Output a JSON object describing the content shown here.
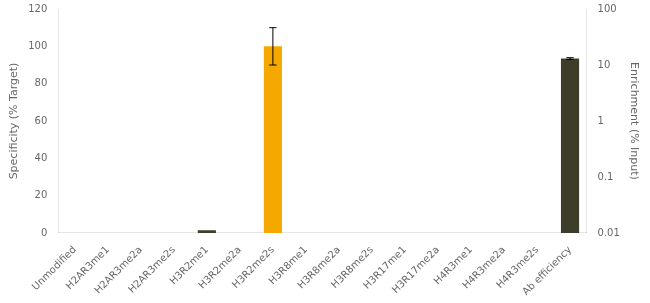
{
  "chart_data": {
    "type": "bar",
    "categories": [
      "Unmodified",
      "H2AR3me1",
      "H2AR3me2a",
      "H2AR3me2s",
      "H3R2me1",
      "H3R2me2a",
      "H3R2me2s",
      "H3R8me1",
      "H3R8me2a",
      "H3R8me2s",
      "H3R17me1",
      "H3R17me2a",
      "H4R3me1",
      "H4R3me2a",
      "H4R3me2s",
      "Ab efficiency"
    ],
    "ylabel": "Specificity (% Target)",
    "y2label": "Enrichment (% Input)",
    "series": [
      {
        "values": [
          0,
          0,
          0,
          0,
          1.5,
          0,
          100,
          0,
          0,
          0,
          0,
          0,
          0,
          0,
          0,
          null
        ],
        "errors": [
          0,
          0,
          0,
          0,
          0,
          0,
          10,
          0,
          0,
          0,
          0,
          0,
          0,
          0,
          0,
          null
        ],
        "colors": [
          "#3d3d2a",
          "#3d3d2a",
          "#3d3d2a",
          "#3d3d2a",
          "#3d3d2a",
          "#3d3d2a",
          "#f5a800",
          "#3d3d2a",
          "#3d3d2a",
          "#3d3d2a",
          "#3d3d2a",
          "#3d3d2a",
          "#3d3d2a",
          "#3d3d2a",
          "#3d3d2a",
          "#3d3d2a"
        ]
      },
      {
        "values": [
          null,
          null,
          null,
          null,
          null,
          null,
          null,
          null,
          null,
          null,
          null,
          null,
          null,
          null,
          null,
          13.0
        ],
        "errors": [
          null,
          null,
          null,
          null,
          null,
          null,
          null,
          null,
          null,
          null,
          null,
          null,
          null,
          null,
          null,
          0.5
        ],
        "color": "#3d3d2a",
        "axis": "y2"
      }
    ],
    "ylim": [
      0,
      120
    ],
    "yticks": [
      0,
      20,
      40,
      60,
      80,
      100,
      120
    ],
    "y2lim": [
      0.01,
      100
    ],
    "y2ticks": [
      0.01,
      0.1,
      1,
      10,
      100
    ],
    "log": "y2",
    "grid": false
  }
}
